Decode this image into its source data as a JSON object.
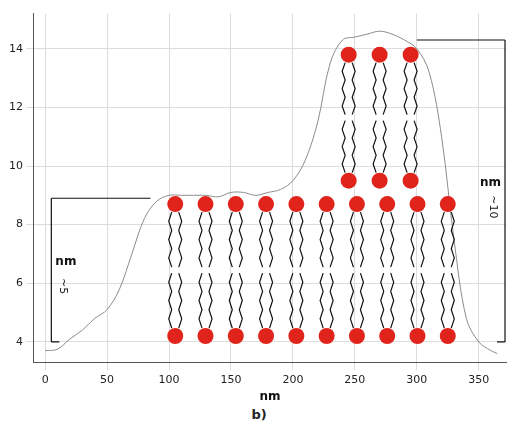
{
  "chart_data": {
    "type": "line",
    "caption": "b)",
    "x_label": "nm",
    "x": [
      0,
      10,
      20,
      30,
      40,
      50,
      60,
      70,
      80,
      90,
      100,
      110,
      120,
      130,
      140,
      150,
      160,
      170,
      180,
      190,
      200,
      210,
      220,
      230,
      240,
      250,
      260,
      270,
      280,
      290,
      300,
      310,
      320,
      330,
      340,
      350,
      360,
      365
    ],
    "values": [
      3.7,
      3.75,
      4.1,
      4.4,
      4.8,
      5.1,
      5.8,
      7.0,
      8.2,
      8.8,
      9.0,
      9.0,
      9.0,
      9.0,
      8.95,
      9.1,
      9.1,
      9.0,
      9.1,
      9.2,
      9.5,
      10.2,
      11.5,
      13.5,
      14.3,
      14.4,
      14.5,
      14.6,
      14.5,
      14.3,
      14.0,
      13.2,
      11.0,
      7.5,
      4.8,
      4.0,
      3.7,
      3.6
    ],
    "color": "#8c8c8c",
    "xlim": [
      -9,
      372
    ],
    "xticks": [
      0,
      50,
      100,
      150,
      200,
      250,
      300,
      350
    ],
    "ylim": [
      3.3,
      15.2
    ],
    "yticks": [
      4,
      6,
      8,
      10,
      12,
      14
    ],
    "grid": true,
    "annotations": [
      {
        "unit": "nm",
        "label": "~5",
        "value": 5,
        "bottom": 4,
        "top": 8.9,
        "x": 5,
        "x_end": 85
      },
      {
        "unit": "nm",
        "label": "~10",
        "value": 10,
        "bottom": 4,
        "top": 14.3,
        "x": 372,
        "x_end": 300
      }
    ],
    "bilayers": [
      {
        "x_start": 105,
        "x_end": 325,
        "heads": 10,
        "top": 8.7,
        "bottom": 4.2
      },
      {
        "x_start": 245,
        "x_end": 295,
        "heads": 3,
        "top": 13.8,
        "bottom": 9.5
      }
    ],
    "bilayer_color": "#e0241b"
  }
}
